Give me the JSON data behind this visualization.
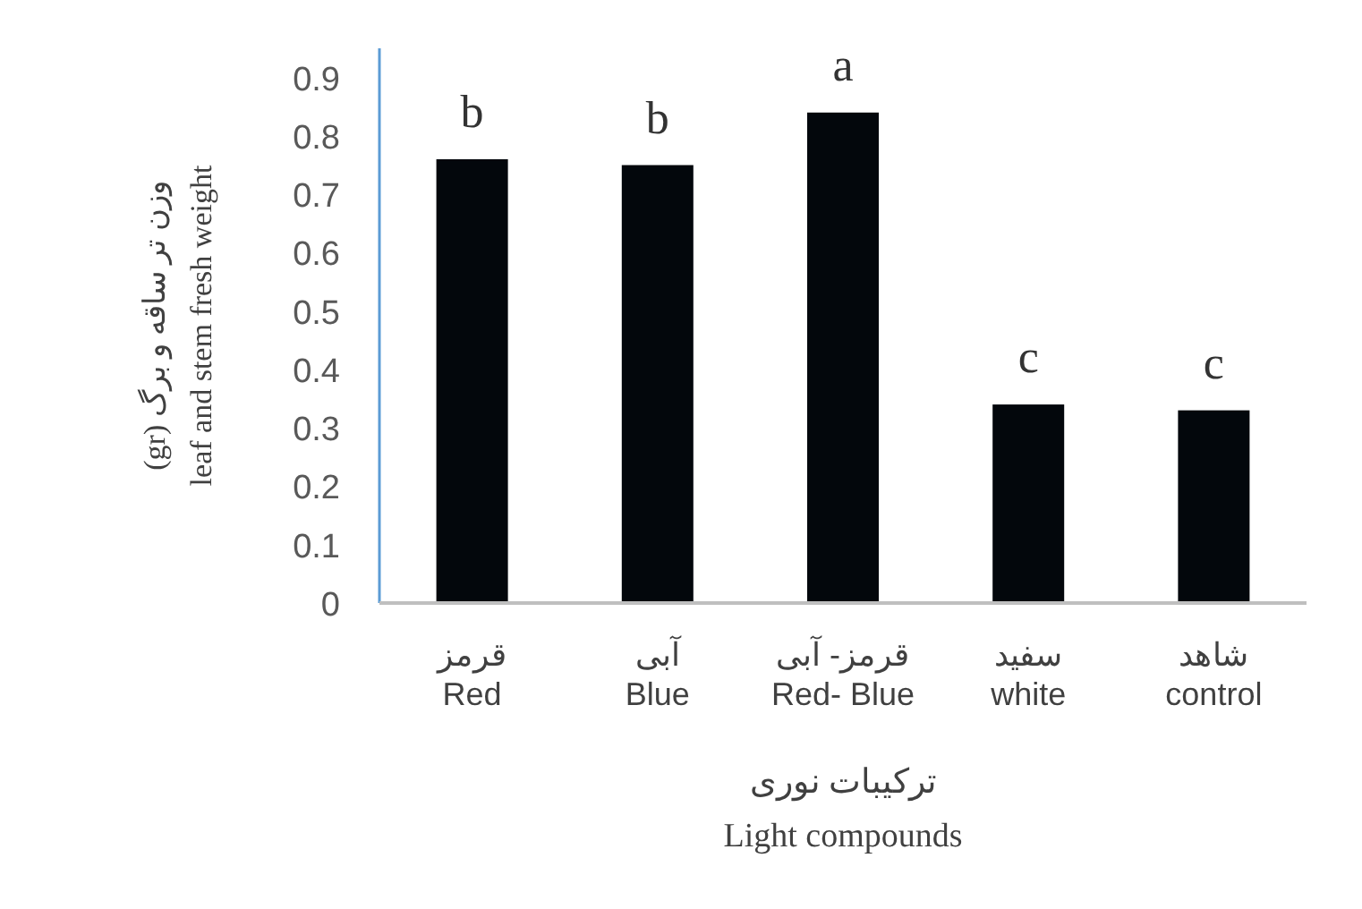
{
  "chart_data": {
    "type": "bar",
    "categories": [
      "قرمز\nRed",
      "آبی\nBlue",
      "قرمز- آبی\nRed- Blue",
      "سفید\nwhite",
      "شاهد\ncontrol"
    ],
    "values": [
      0.76,
      0.75,
      0.84,
      0.34,
      0.33
    ],
    "color": "#03070c",
    "ylim": [
      0,
      0.95
    ],
    "yticks": [
      0,
      0.1,
      0.2,
      0.3,
      0.4,
      0.5,
      0.6,
      0.7,
      0.8,
      0.9
    ],
    "xlabel": "ترکیبات نوری\nLight compounds",
    "ylabel": "(gr) وزن تر ساقه و برگ\nleaf and stem fresh  weight",
    "grid": false,
    "annotations": [
      {
        "text": "b",
        "x": "قرمز\nRed",
        "y": 0.76
      },
      {
        "text": "b",
        "x": "آبی\nBlue",
        "y": 0.75
      },
      {
        "text": "a",
        "x": "قرمز- آبی\nRed- Blue",
        "y": 0.84
      },
      {
        "text": "c",
        "x": "سفید\nwhite",
        "y": 0.34
      },
      {
        "text": "c",
        "x": "شاهد\ncontrol",
        "y": 0.33
      }
    ]
  }
}
